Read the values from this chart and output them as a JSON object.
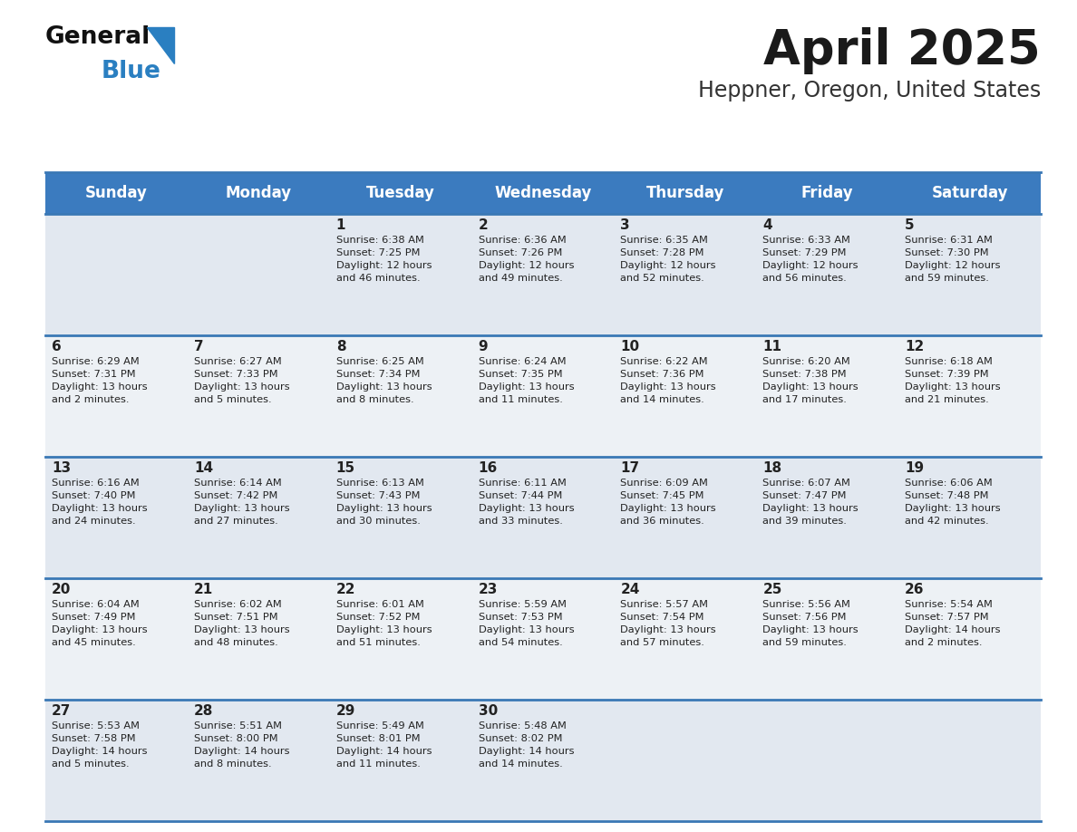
{
  "title": "April 2025",
  "subtitle": "Heppner, Oregon, United States",
  "days_of_week": [
    "Sunday",
    "Monday",
    "Tuesday",
    "Wednesday",
    "Thursday",
    "Friday",
    "Saturday"
  ],
  "header_bg": "#3b7bbf",
  "header_text": "#ffffff",
  "cell_bg_odd": "#e8eef4",
  "cell_bg_even": "#f5f7fa",
  "row_line_color": "#3a78b5",
  "text_color": "#222222",
  "title_color": "#1a1a1a",
  "subtitle_color": "#333333",
  "calendar": [
    [
      {
        "day": null,
        "info": null
      },
      {
        "day": null,
        "info": null
      },
      {
        "day": 1,
        "info": "Sunrise: 6:38 AM\nSunset: 7:25 PM\nDaylight: 12 hours\nand 46 minutes."
      },
      {
        "day": 2,
        "info": "Sunrise: 6:36 AM\nSunset: 7:26 PM\nDaylight: 12 hours\nand 49 minutes."
      },
      {
        "day": 3,
        "info": "Sunrise: 6:35 AM\nSunset: 7:28 PM\nDaylight: 12 hours\nand 52 minutes."
      },
      {
        "day": 4,
        "info": "Sunrise: 6:33 AM\nSunset: 7:29 PM\nDaylight: 12 hours\nand 56 minutes."
      },
      {
        "day": 5,
        "info": "Sunrise: 6:31 AM\nSunset: 7:30 PM\nDaylight: 12 hours\nand 59 minutes."
      }
    ],
    [
      {
        "day": 6,
        "info": "Sunrise: 6:29 AM\nSunset: 7:31 PM\nDaylight: 13 hours\nand 2 minutes."
      },
      {
        "day": 7,
        "info": "Sunrise: 6:27 AM\nSunset: 7:33 PM\nDaylight: 13 hours\nand 5 minutes."
      },
      {
        "day": 8,
        "info": "Sunrise: 6:25 AM\nSunset: 7:34 PM\nDaylight: 13 hours\nand 8 minutes."
      },
      {
        "day": 9,
        "info": "Sunrise: 6:24 AM\nSunset: 7:35 PM\nDaylight: 13 hours\nand 11 minutes."
      },
      {
        "day": 10,
        "info": "Sunrise: 6:22 AM\nSunset: 7:36 PM\nDaylight: 13 hours\nand 14 minutes."
      },
      {
        "day": 11,
        "info": "Sunrise: 6:20 AM\nSunset: 7:38 PM\nDaylight: 13 hours\nand 17 minutes."
      },
      {
        "day": 12,
        "info": "Sunrise: 6:18 AM\nSunset: 7:39 PM\nDaylight: 13 hours\nand 21 minutes."
      }
    ],
    [
      {
        "day": 13,
        "info": "Sunrise: 6:16 AM\nSunset: 7:40 PM\nDaylight: 13 hours\nand 24 minutes."
      },
      {
        "day": 14,
        "info": "Sunrise: 6:14 AM\nSunset: 7:42 PM\nDaylight: 13 hours\nand 27 minutes."
      },
      {
        "day": 15,
        "info": "Sunrise: 6:13 AM\nSunset: 7:43 PM\nDaylight: 13 hours\nand 30 minutes."
      },
      {
        "day": 16,
        "info": "Sunrise: 6:11 AM\nSunset: 7:44 PM\nDaylight: 13 hours\nand 33 minutes."
      },
      {
        "day": 17,
        "info": "Sunrise: 6:09 AM\nSunset: 7:45 PM\nDaylight: 13 hours\nand 36 minutes."
      },
      {
        "day": 18,
        "info": "Sunrise: 6:07 AM\nSunset: 7:47 PM\nDaylight: 13 hours\nand 39 minutes."
      },
      {
        "day": 19,
        "info": "Sunrise: 6:06 AM\nSunset: 7:48 PM\nDaylight: 13 hours\nand 42 minutes."
      }
    ],
    [
      {
        "day": 20,
        "info": "Sunrise: 6:04 AM\nSunset: 7:49 PM\nDaylight: 13 hours\nand 45 minutes."
      },
      {
        "day": 21,
        "info": "Sunrise: 6:02 AM\nSunset: 7:51 PM\nDaylight: 13 hours\nand 48 minutes."
      },
      {
        "day": 22,
        "info": "Sunrise: 6:01 AM\nSunset: 7:52 PM\nDaylight: 13 hours\nand 51 minutes."
      },
      {
        "day": 23,
        "info": "Sunrise: 5:59 AM\nSunset: 7:53 PM\nDaylight: 13 hours\nand 54 minutes."
      },
      {
        "day": 24,
        "info": "Sunrise: 5:57 AM\nSunset: 7:54 PM\nDaylight: 13 hours\nand 57 minutes."
      },
      {
        "day": 25,
        "info": "Sunrise: 5:56 AM\nSunset: 7:56 PM\nDaylight: 13 hours\nand 59 minutes."
      },
      {
        "day": 26,
        "info": "Sunrise: 5:54 AM\nSunset: 7:57 PM\nDaylight: 14 hours\nand 2 minutes."
      }
    ],
    [
      {
        "day": 27,
        "info": "Sunrise: 5:53 AM\nSunset: 7:58 PM\nDaylight: 14 hours\nand 5 minutes."
      },
      {
        "day": 28,
        "info": "Sunrise: 5:51 AM\nSunset: 8:00 PM\nDaylight: 14 hours\nand 8 minutes."
      },
      {
        "day": 29,
        "info": "Sunrise: 5:49 AM\nSunset: 8:01 PM\nDaylight: 14 hours\nand 11 minutes."
      },
      {
        "day": 30,
        "info": "Sunrise: 5:48 AM\nSunset: 8:02 PM\nDaylight: 14 hours\nand 14 minutes."
      },
      {
        "day": null,
        "info": null
      },
      {
        "day": null,
        "info": null
      },
      {
        "day": null,
        "info": null
      }
    ]
  ],
  "logo_text_general": "General",
  "logo_text_blue": "Blue",
  "logo_color_general": "#111111",
  "logo_color_blue": "#2a7fc1",
  "logo_triangle_color": "#2a7fc1"
}
